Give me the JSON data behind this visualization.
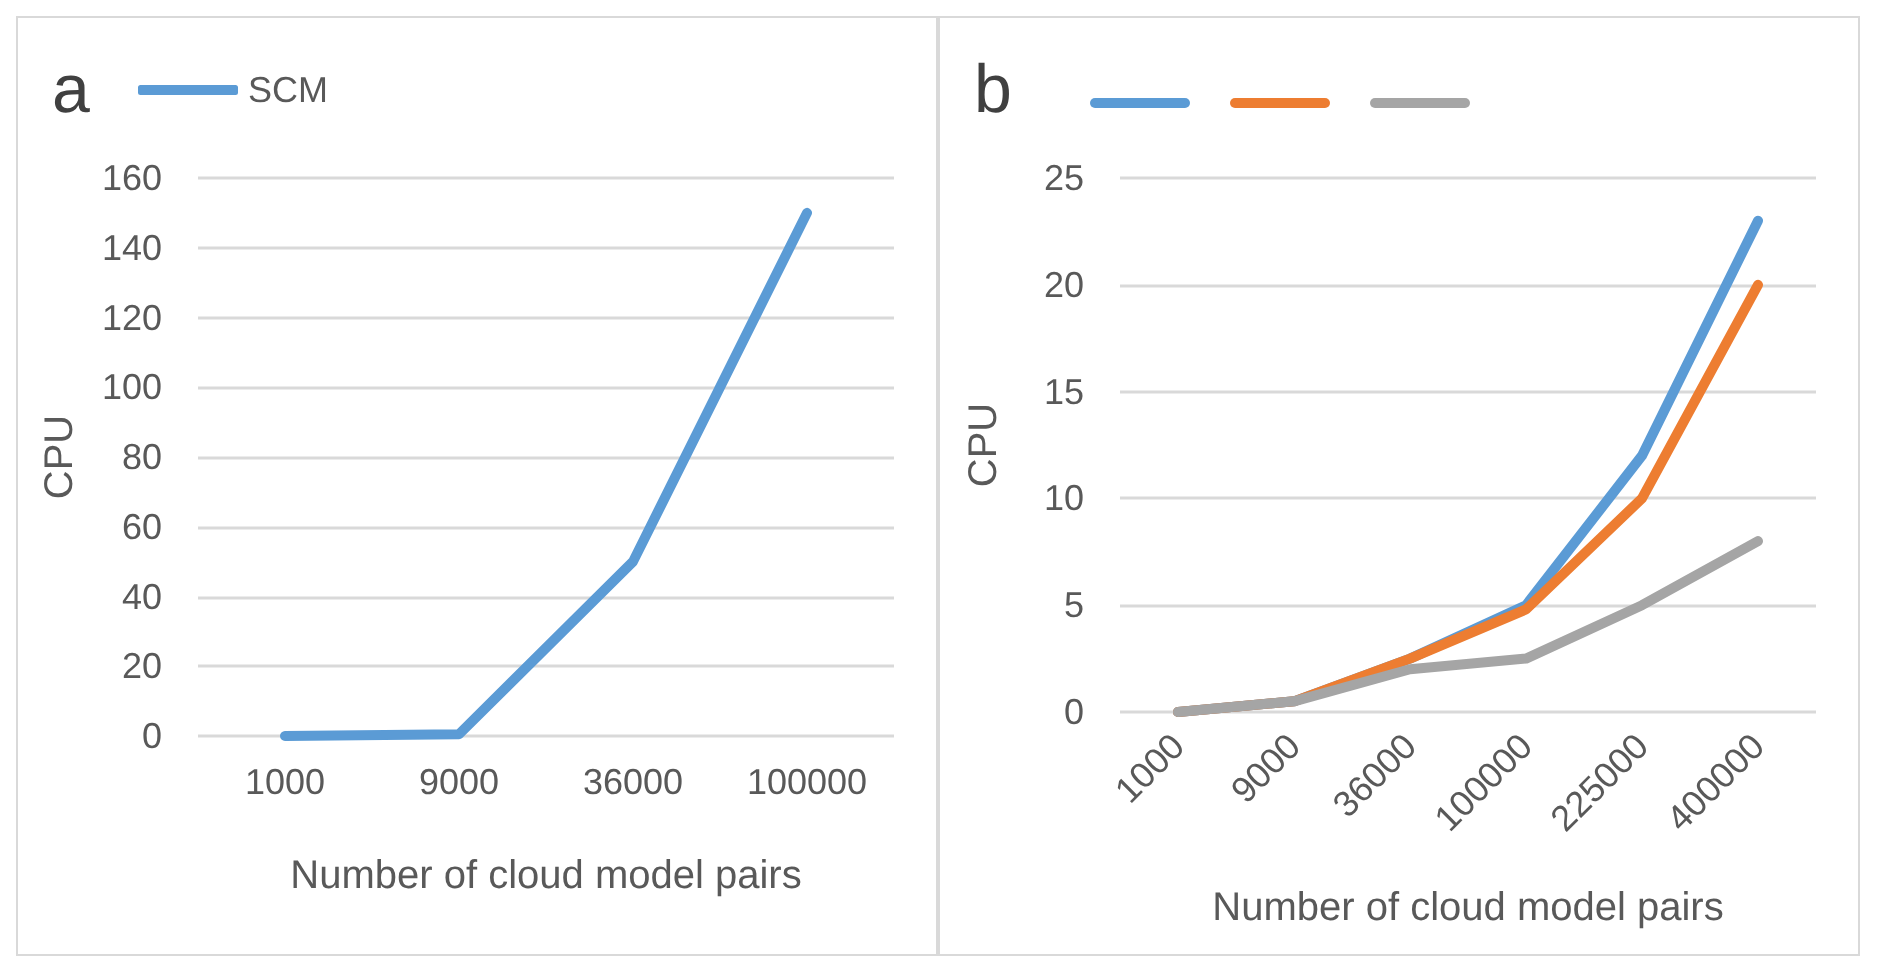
{
  "chart_data": [
    {
      "type": "line",
      "title": "a",
      "xlabel": "Number of cloud model pairs",
      "ylabel": "CPU",
      "categories": [
        "1000",
        "9000",
        "36000",
        "100000"
      ],
      "series": [
        {
          "name": "SCM",
          "color": "#5b9bd5",
          "values": [
            0,
            0.5,
            50,
            150
          ]
        }
      ],
      "ylim": [
        0,
        160
      ],
      "yticks": [
        0,
        20,
        40,
        60,
        80,
        100,
        120,
        140,
        160
      ],
      "grid": "y",
      "legend": "top left"
    },
    {
      "type": "line",
      "title": "b",
      "xlabel": "Number of cloud model pairs",
      "ylabel": "CPU",
      "categories": [
        "1000",
        "9000",
        "36000",
        "100000",
        "225000",
        "400000"
      ],
      "series": [
        {
          "color": "#5b9bd5",
          "values": [
            0,
            0.5,
            2.5,
            5,
            12,
            23
          ]
        },
        {
          "color": "#ed7d31",
          "values": [
            0,
            0.5,
            2.5,
            4.8,
            10,
            20
          ]
        },
        {
          "color": "#a5a5a5",
          "values": [
            0,
            0.5,
            2,
            2.5,
            5,
            8
          ]
        }
      ],
      "ylim": [
        0,
        25
      ],
      "yticks": [
        0,
        5,
        10,
        15,
        20,
        25
      ],
      "grid": "y",
      "legend": "top left"
    }
  ]
}
